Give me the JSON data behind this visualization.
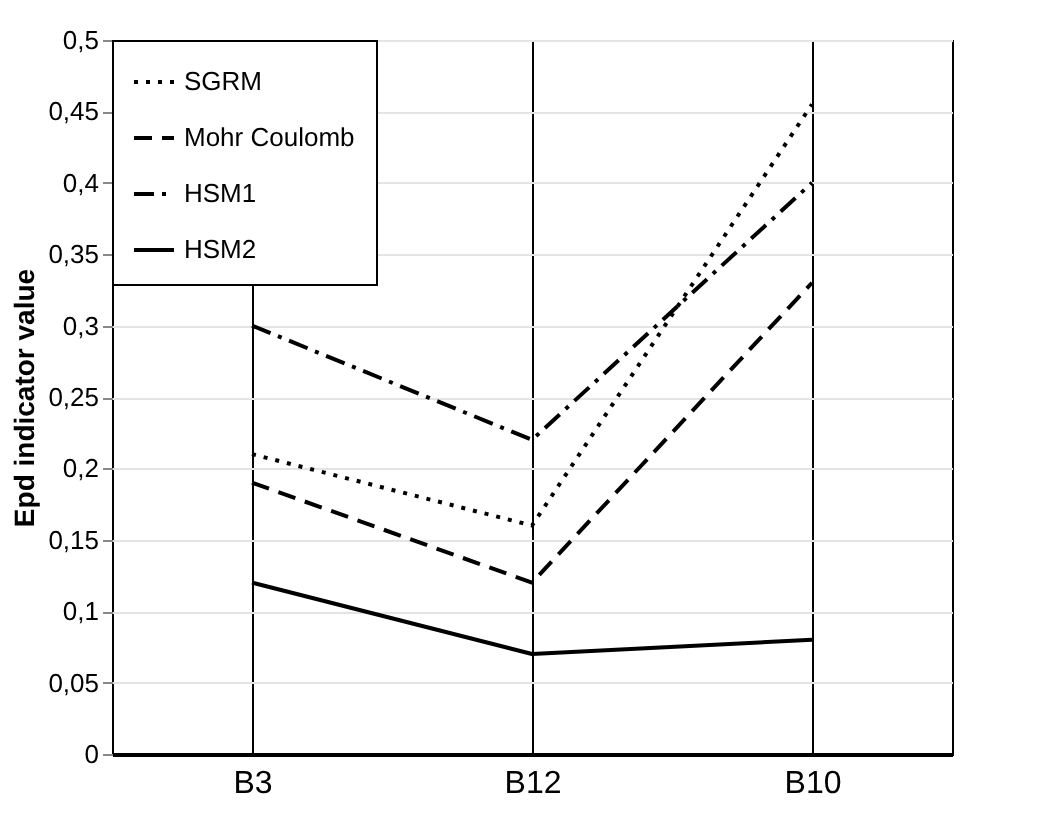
{
  "chart_data": {
    "type": "line",
    "ylabel": "Epd indicator value",
    "categories": [
      "B3",
      "B12",
      "B10"
    ],
    "series": [
      {
        "name": "SGRM",
        "color": "#000000",
        "line_style": "dotted",
        "values": [
          0.21,
          0.16,
          0.455
        ]
      },
      {
        "name": "Mohr Coulomb",
        "color": "#000000",
        "line_style": "dashed",
        "values": [
          0.19,
          0.12,
          0.33
        ]
      },
      {
        "name": "HSM1",
        "color": "#000000",
        "line_style": "dashdot",
        "values": [
          0.3,
          0.22,
          0.4
        ]
      },
      {
        "name": "HSM2",
        "color": "#000000",
        "line_style": "solid",
        "values": [
          0.12,
          0.07,
          0.08
        ]
      }
    ],
    "ylim": [
      0,
      0.5
    ],
    "yticks": [
      0,
      {
        "value": 0.05,
        "label": "0,05"
      },
      {
        "value": 0.1,
        "label": "0,1"
      },
      {
        "value": 0.15,
        "label": "0,15"
      },
      {
        "value": 0.2,
        "label": "0,2"
      },
      {
        "value": 0.25,
        "label": "0,25"
      },
      {
        "value": 0.3,
        "label": "0,3"
      },
      {
        "value": 0.35,
        "label": "0,35"
      },
      {
        "value": 0.4,
        "label": "0,4"
      },
      {
        "value": 0.45,
        "label": "0,45"
      },
      {
        "value": 0.5,
        "label": "0,5"
      }
    ],
    "grid": true,
    "legend": "top left",
    "marker": "none"
  }
}
